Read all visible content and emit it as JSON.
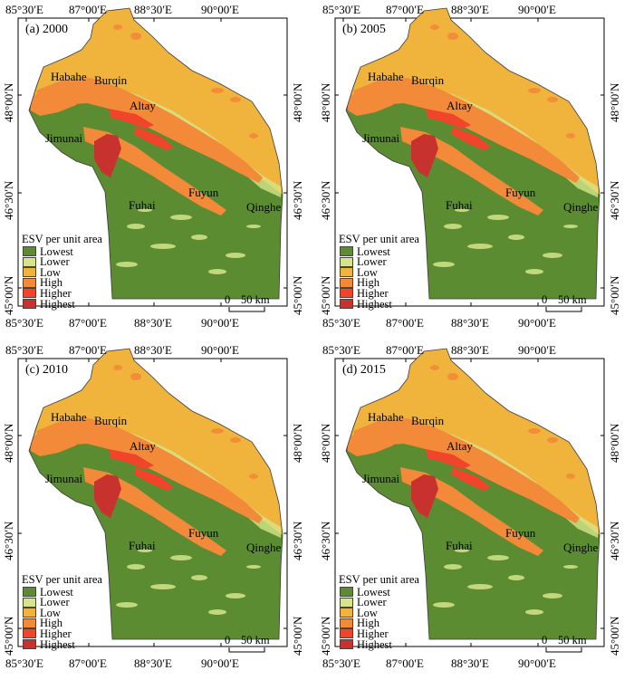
{
  "legend": {
    "title": "ESV per unit area",
    "classes": [
      {
        "label": "Lowest",
        "color": "#5b8c32"
      },
      {
        "label": "Lower",
        "color": "#d6e58a"
      },
      {
        "label": "Low",
        "color": "#f0b43c"
      },
      {
        "label": "High",
        "color": "#f28a3a"
      },
      {
        "label": "Higher",
        "color": "#f0452a"
      },
      {
        "label": "Highest",
        "color": "#c8322e"
      }
    ]
  },
  "axes": {
    "lon_labels": [
      "85°30′E",
      "87°00′E",
      "88°30′E",
      "90°00′E"
    ],
    "lat_labels": [
      "48°00′N",
      "46°30′N",
      "45°00′N"
    ]
  },
  "places": {
    "habahe": "Habahe",
    "burqin": "Burqin",
    "altay": "Altay",
    "jimunai": "Jimunai",
    "fuyun": "Fuyun",
    "fuhai": "Fuhai",
    "qinghe": "Qinghe"
  },
  "scale_bar": {
    "zero": "0",
    "distance": "50 km"
  },
  "panels": [
    {
      "id": "2000",
      "title": "(a) 2000"
    },
    {
      "id": "2005",
      "title": "(b) 2005"
    },
    {
      "id": "2010",
      "title": "(c) 2010"
    },
    {
      "id": "2015",
      "title": "(d) 2015"
    }
  ]
}
